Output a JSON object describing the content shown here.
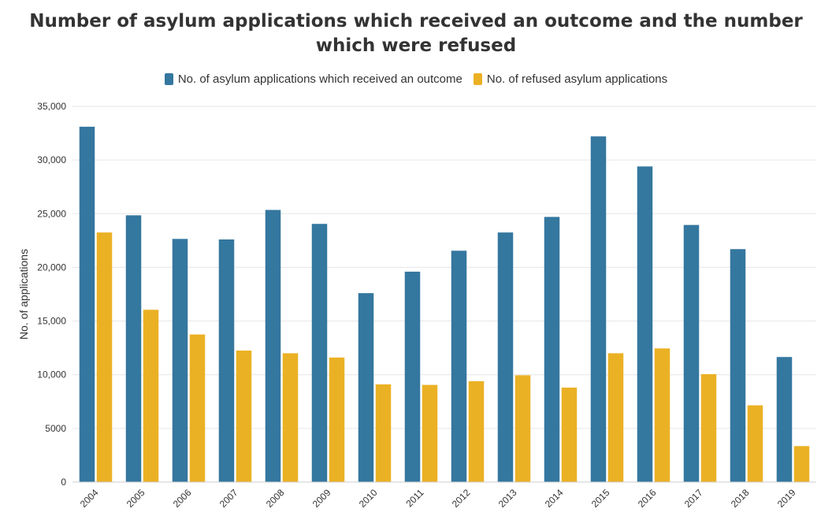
{
  "chart_data": {
    "type": "bar",
    "title": "Number of asylum applications which received an outcome and the number which were refused",
    "xlabel": "",
    "ylabel": "No. of applications",
    "ylim": [
      0,
      35000
    ],
    "yticks": [
      0,
      5000,
      10000,
      15000,
      20000,
      25000,
      30000,
      35000
    ],
    "ytick_labels": [
      "0",
      "5000",
      "10,000",
      "15,000",
      "20,000",
      "25,000",
      "30,000",
      "35,000"
    ],
    "grid": true,
    "legend_position": "top-center",
    "categories": [
      "2004",
      "2005",
      "2006",
      "2007",
      "2008",
      "2009",
      "2010",
      "2011",
      "2012",
      "2013",
      "2014",
      "2015",
      "2016",
      "2017",
      "2018",
      "2019"
    ],
    "series": [
      {
        "name": "No. of asylum applications which received an outcome",
        "color": "#34779f",
        "values": [
          33100,
          24850,
          22650,
          22600,
          25350,
          24050,
          17600,
          19600,
          21550,
          23250,
          24700,
          32200,
          29400,
          23950,
          21700,
          11650
        ]
      },
      {
        "name": "No. of refused asylum applications",
        "color": "#ebb125",
        "values": [
          23250,
          16050,
          13750,
          12250,
          12000,
          11600,
          9100,
          9050,
          9400,
          9950,
          8800,
          12000,
          12450,
          10050,
          7150,
          3350
        ]
      }
    ]
  }
}
